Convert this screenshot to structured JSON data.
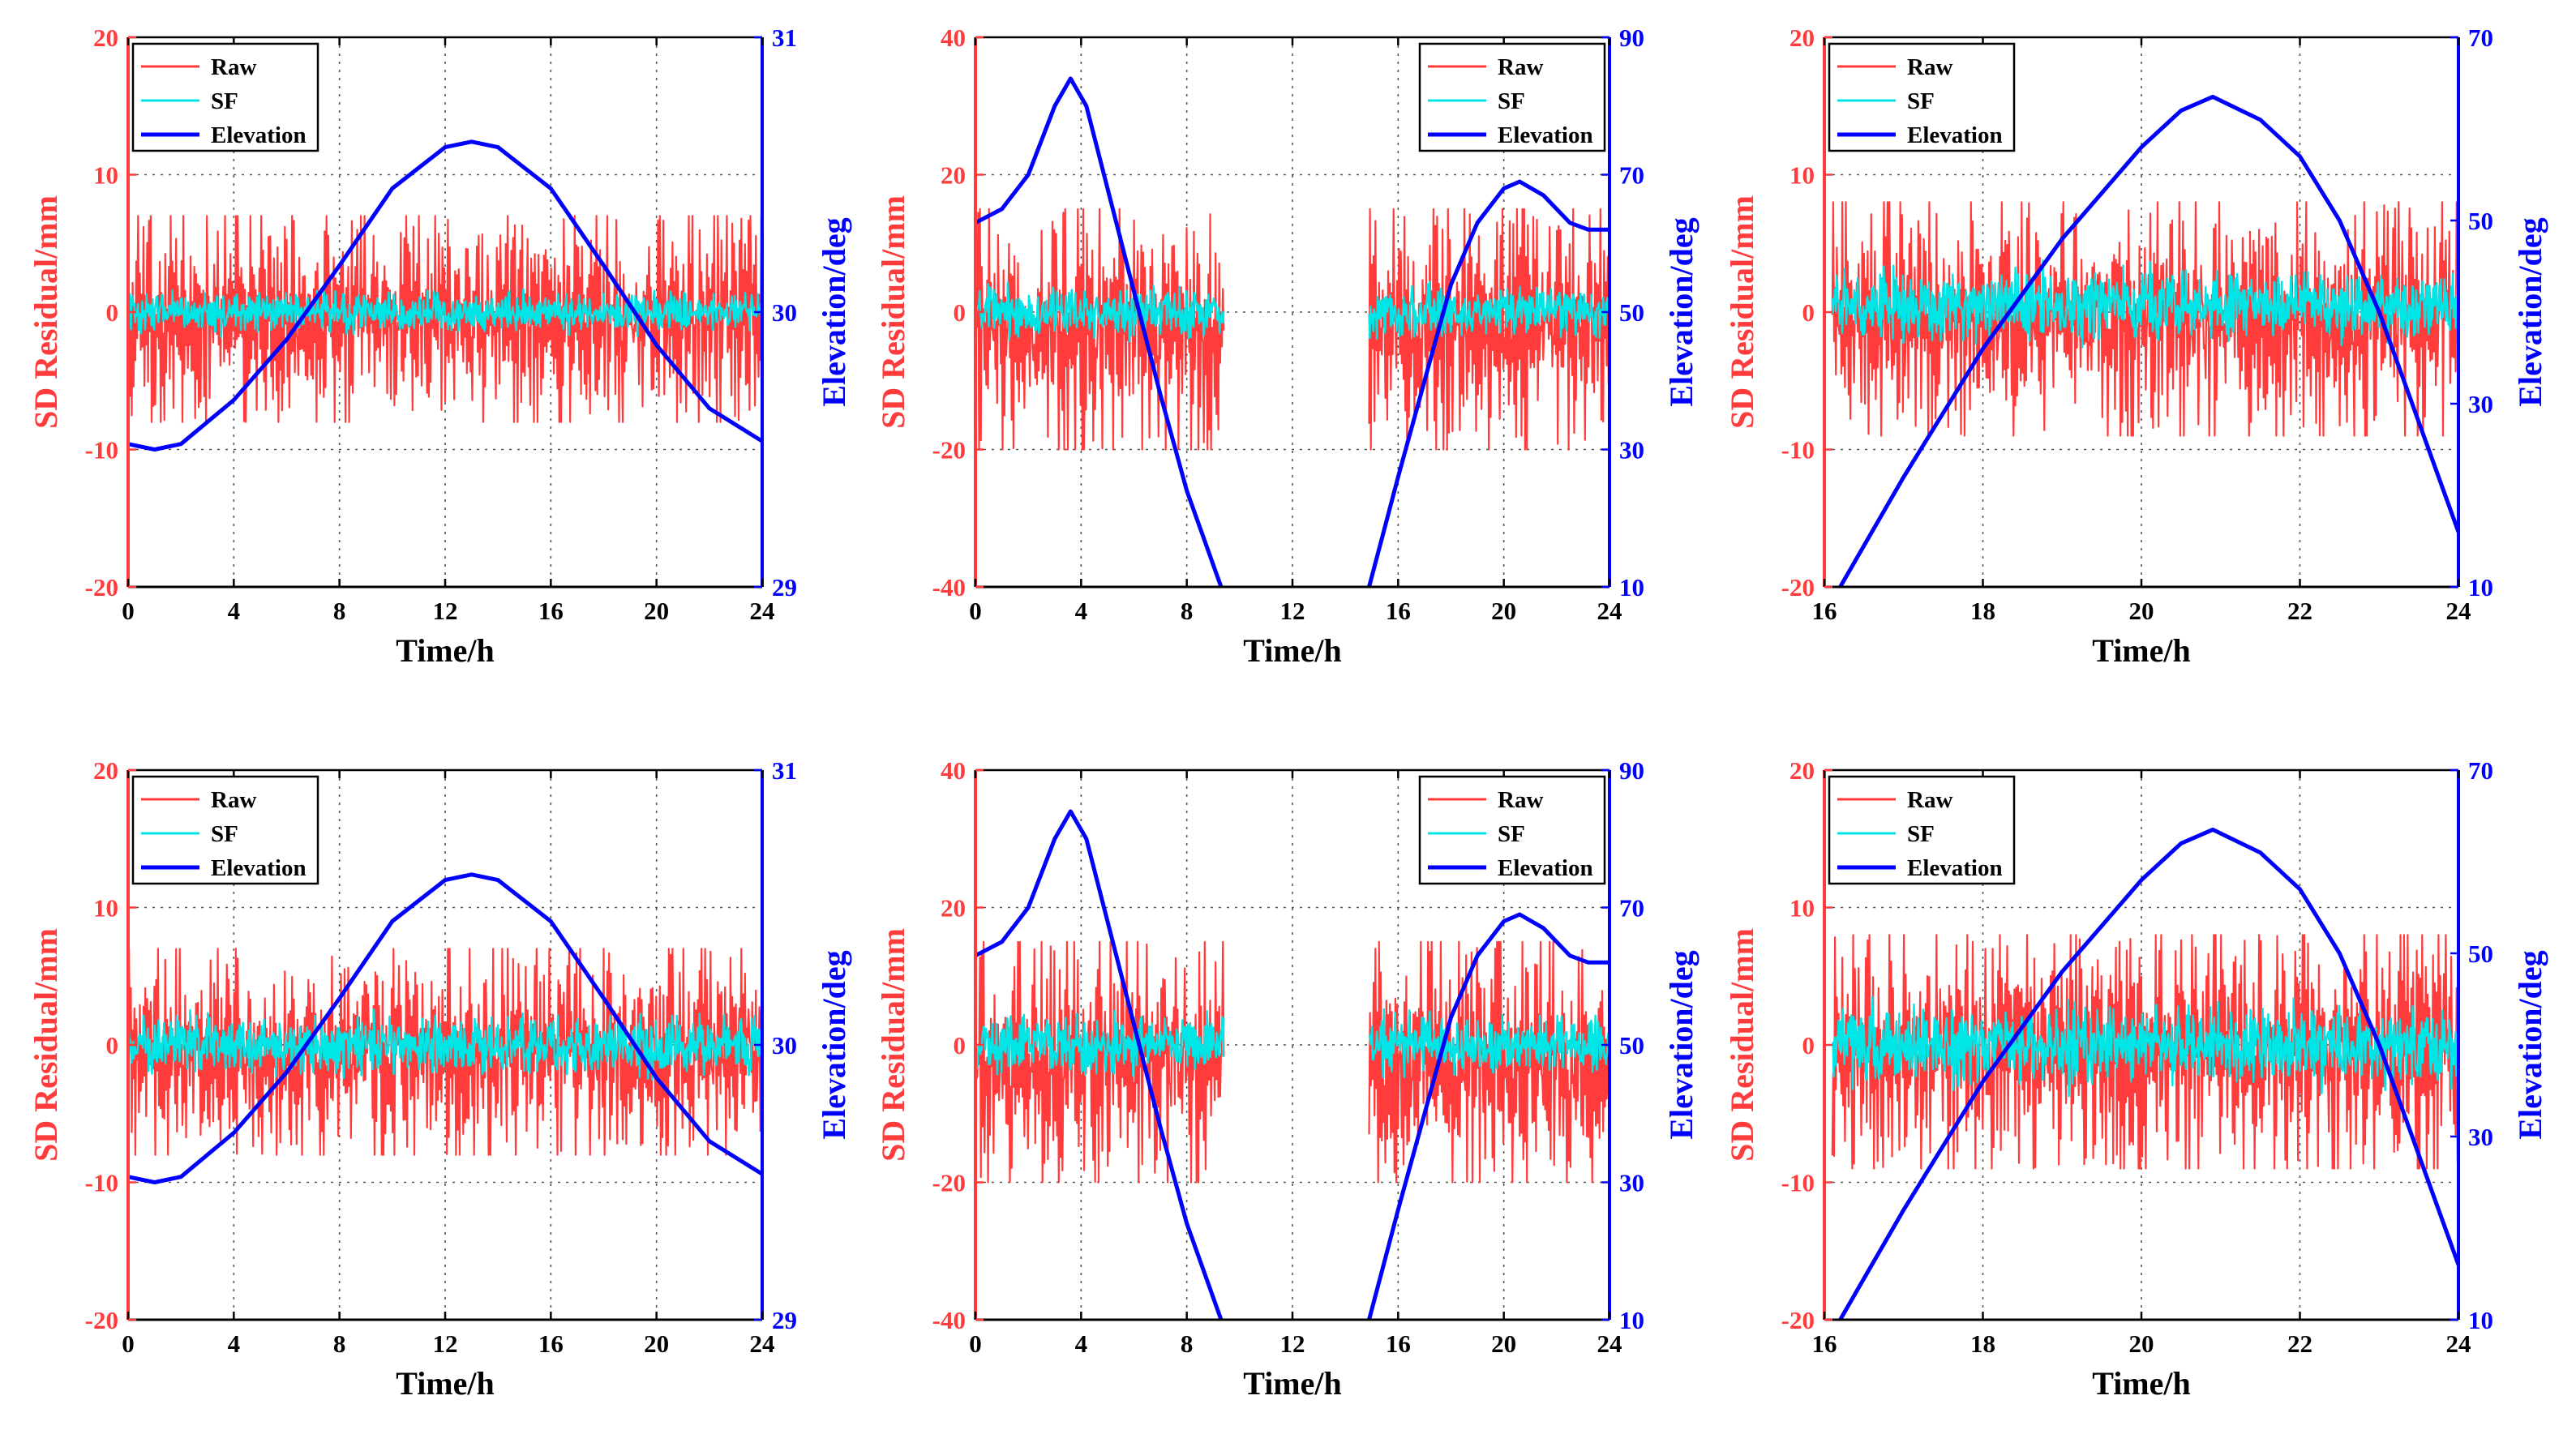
{
  "colors": {
    "raw": "#ff3b3b",
    "sf": "#00e5e5",
    "elevation": "#0000ff",
    "left_axis": "#ff3b3b",
    "right_axis": "#0000ff",
    "axis": "#000000",
    "grid": "#555555"
  },
  "legend_labels": [
    "Raw",
    "SF",
    "Elevation"
  ],
  "chart_data": [
    {
      "type": "line",
      "xlabel": "Time/h",
      "ylabel": "SD Residual/mm",
      "y2label": "Elevation/deg",
      "xlim": [
        0,
        24
      ],
      "xticks": [
        0,
        4,
        8,
        12,
        16,
        20,
        24
      ],
      "ylim": [
        -20,
        20
      ],
      "yticks": [
        -20,
        -10,
        0,
        10,
        20
      ],
      "y2lim": [
        29,
        31
      ],
      "y2ticks": [
        29,
        30,
        31
      ],
      "legend_position": "top-left",
      "series": [
        {
          "name": "Raw",
          "axis": "left",
          "segments": [
            [
              0,
              24
            ]
          ],
          "min": -8,
          "max": 7
        },
        {
          "name": "SF",
          "axis": "left",
          "segments": [
            [
              0,
              24
            ]
          ],
          "min": -2,
          "max": 2
        },
        {
          "name": "Elevation",
          "axis": "right",
          "x": [
            0,
            1,
            2,
            4,
            6,
            8,
            10,
            12,
            13,
            14,
            16,
            18,
            20,
            22,
            24
          ],
          "y": [
            29.52,
            29.5,
            29.52,
            29.68,
            29.9,
            30.17,
            30.45,
            30.6,
            30.62,
            30.6,
            30.45,
            30.17,
            29.88,
            29.65,
            29.53
          ]
        }
      ]
    },
    {
      "type": "line",
      "xlabel": "Time/h",
      "ylabel": "SD Residual/mm",
      "y2label": "Elevation/deg",
      "xlim": [
        0,
        24
      ],
      "xticks": [
        0,
        4,
        8,
        12,
        16,
        20,
        24
      ],
      "ylim": [
        -40,
        40
      ],
      "yticks": [
        -40,
        -20,
        0,
        20,
        40
      ],
      "y2lim": [
        10,
        90
      ],
      "y2ticks": [
        10,
        30,
        50,
        70,
        90
      ],
      "legend_position": "top-right",
      "series": [
        {
          "name": "Raw",
          "axis": "left",
          "segments": [
            [
              0,
              9.4
            ],
            [
              14.9,
              24
            ]
          ],
          "min": -20,
          "max": 15
        },
        {
          "name": "SF",
          "axis": "left",
          "segments": [
            [
              0,
              9.4
            ],
            [
              14.9,
              24
            ]
          ],
          "min": -5,
          "max": 5
        },
        {
          "name": "Elevation",
          "axis": "right",
          "x": [
            0,
            1,
            2,
            3,
            3.6,
            4.2,
            5,
            6,
            7,
            8,
            9.3,
            null,
            14.9,
            16,
            17,
            18,
            19,
            20,
            20.6,
            21.5,
            22.5,
            23.2,
            24
          ],
          "y": [
            63,
            65,
            70,
            80,
            84,
            80,
            68,
            53,
            38,
            24,
            10,
            null,
            10,
            26,
            40,
            54,
            63,
            68,
            69,
            67,
            63,
            62,
            62
          ]
        }
      ]
    },
    {
      "type": "line",
      "xlabel": "Time/h",
      "ylabel": "SD Residual/mm",
      "y2label": "Elevation/deg",
      "xlim": [
        16,
        24
      ],
      "xticks": [
        16,
        18,
        20,
        22,
        24
      ],
      "ylim": [
        -20,
        20
      ],
      "yticks": [
        -20,
        -10,
        0,
        10,
        20
      ],
      "y2lim": [
        10,
        70
      ],
      "y2ticks": [
        10,
        30,
        50,
        70
      ],
      "legend_position": "top-left",
      "series": [
        {
          "name": "Raw",
          "axis": "left",
          "segments": [
            [
              16.1,
              24
            ]
          ],
          "min": -9,
          "max": 8
        },
        {
          "name": "SF",
          "axis": "left",
          "segments": [
            [
              16.1,
              24
            ]
          ],
          "min": -3,
          "max": 4
        },
        {
          "name": "Elevation",
          "axis": "right",
          "x": [
            16.2,
            17,
            18,
            19,
            20,
            20.5,
            20.9,
            21.5,
            22,
            22.5,
            23,
            23.5,
            24
          ],
          "y": [
            10,
            22,
            36,
            48,
            58,
            62,
            63.5,
            61,
            57,
            50,
            40,
            28,
            16
          ]
        }
      ]
    },
    {
      "type": "line",
      "xlabel": "Time/h",
      "ylabel": "SD Residual/mm",
      "y2label": "Elevation/deg",
      "xlim": [
        0,
        24
      ],
      "xticks": [
        0,
        4,
        8,
        12,
        16,
        20,
        24
      ],
      "ylim": [
        -20,
        20
      ],
      "yticks": [
        -20,
        -10,
        0,
        10,
        20
      ],
      "y2lim": [
        29,
        31
      ],
      "y2ticks": [
        29,
        30,
        31
      ],
      "legend_position": "top-left",
      "series": [
        {
          "name": "Raw",
          "axis": "left",
          "segments": [
            [
              0,
              24
            ]
          ],
          "min": -8,
          "max": 7
        },
        {
          "name": "SF",
          "axis": "left",
          "segments": [
            [
              0,
              24
            ]
          ],
          "min": -3,
          "max": 3
        },
        {
          "name": "Elevation",
          "axis": "right",
          "x": [
            0,
            1,
            2,
            4,
            6,
            8,
            10,
            12,
            13,
            14,
            16,
            18,
            20,
            22,
            24
          ],
          "y": [
            29.52,
            29.5,
            29.52,
            29.68,
            29.9,
            30.17,
            30.45,
            30.6,
            30.62,
            30.6,
            30.45,
            30.17,
            29.88,
            29.65,
            29.53
          ]
        }
      ]
    },
    {
      "type": "line",
      "xlabel": "Time/h",
      "ylabel": "SD Residual/mm",
      "y2label": "Elevation/deg",
      "xlim": [
        0,
        24
      ],
      "xticks": [
        0,
        4,
        8,
        12,
        16,
        20,
        24
      ],
      "ylim": [
        -40,
        40
      ],
      "yticks": [
        -40,
        -20,
        0,
        20,
        40
      ],
      "y2lim": [
        10,
        90
      ],
      "y2ticks": [
        10,
        30,
        50,
        70,
        90
      ],
      "legend_position": "top-right",
      "series": [
        {
          "name": "Raw",
          "axis": "left",
          "segments": [
            [
              0,
              9.4
            ],
            [
              14.9,
              24
            ]
          ],
          "min": -20,
          "max": 15
        },
        {
          "name": "SF",
          "axis": "left",
          "segments": [
            [
              0,
              9.4
            ],
            [
              14.9,
              24
            ]
          ],
          "min": -6,
          "max": 6
        },
        {
          "name": "Elevation",
          "axis": "right",
          "x": [
            0,
            1,
            2,
            3,
            3.6,
            4.2,
            5,
            6,
            7,
            8,
            9.3,
            null,
            14.9,
            16,
            17,
            18,
            19,
            20,
            20.6,
            21.5,
            22.5,
            23.2,
            24
          ],
          "y": [
            63,
            65,
            70,
            80,
            84,
            80,
            68,
            53,
            38,
            24,
            10,
            null,
            10,
            26,
            40,
            54,
            63,
            68,
            69,
            67,
            63,
            62,
            62
          ]
        }
      ]
    },
    {
      "type": "line",
      "xlabel": "Time/h",
      "ylabel": "SD Residual/mm",
      "y2label": "Elevation/deg",
      "xlim": [
        16,
        24
      ],
      "xticks": [
        16,
        18,
        20,
        22,
        24
      ],
      "ylim": [
        -20,
        20
      ],
      "yticks": [
        -20,
        -10,
        0,
        10,
        20
      ],
      "y2lim": [
        10,
        70
      ],
      "y2ticks": [
        10,
        30,
        50,
        70
      ],
      "legend_position": "top-left",
      "series": [
        {
          "name": "Raw",
          "axis": "left",
          "segments": [
            [
              16.1,
              24
            ]
          ],
          "min": -9,
          "max": 8
        },
        {
          "name": "SF",
          "axis": "left",
          "segments": [
            [
              16.1,
              24
            ]
          ],
          "min": -4,
          "max": 4
        },
        {
          "name": "Elevation",
          "axis": "right",
          "x": [
            16.2,
            17,
            18,
            19,
            20,
            20.5,
            20.9,
            21.5,
            22,
            22.5,
            23,
            23.5,
            24
          ],
          "y": [
            10,
            22,
            36,
            48,
            58,
            62,
            63.5,
            61,
            57,
            50,
            40,
            28,
            16
          ]
        }
      ]
    }
  ]
}
